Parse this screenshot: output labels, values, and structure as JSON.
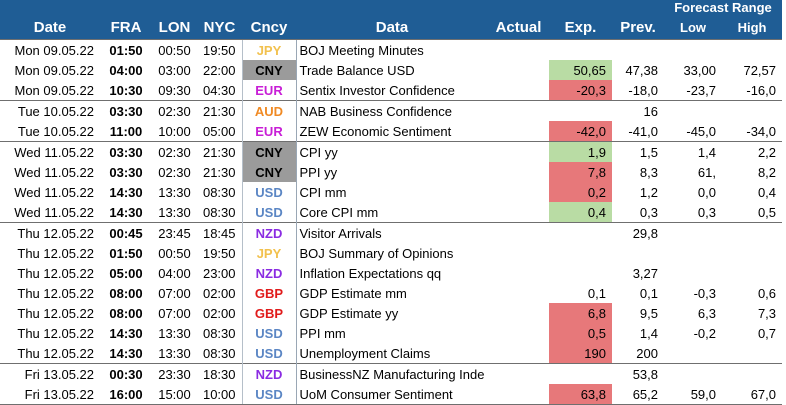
{
  "headers": {
    "date": "Date",
    "fra": "FRA",
    "lon": "LON",
    "nyc": "NYC",
    "cncy": "Cncy",
    "data": "Data",
    "actual": "Actual",
    "exp": "Exp.",
    "prev": "Prev.",
    "forecast_range": "Forecast Range",
    "low": "Low",
    "high": "High"
  },
  "colors": {
    "header_bg": "#1f5d95",
    "JPY": "#f2c14e",
    "CNY": "#000000",
    "EUR": "#c81ed6",
    "AUD": "#f08a24",
    "USD": "#5b86c4",
    "NZD": "#8a2be2",
    "GBP": "#e01b1b",
    "exp_negative_bg": "#e7787a",
    "exp_positive_bg": "#b9dca4",
    "cny_bg": "#9b9b9b"
  },
  "rows": [
    {
      "date": "Mon 09.05.22",
      "fra": "01:50",
      "lon": "00:50",
      "nyc": "19:50",
      "cur": "JPY",
      "data": "BOJ Meeting Minutes",
      "actual": "",
      "exp": "",
      "exp_style": "",
      "prev": "",
      "low": "",
      "high": "",
      "day_start": true
    },
    {
      "date": "Mon 09.05.22",
      "fra": "04:00",
      "lon": "03:00",
      "nyc": "22:00",
      "cur": "CNY",
      "data": "Trade Balance USD",
      "actual": "",
      "exp": "50,65",
      "exp_style": "pos",
      "prev": "47,38",
      "low": "33,00",
      "high": "72,57",
      "day_start": false
    },
    {
      "date": "Mon 09.05.22",
      "fra": "10:30",
      "lon": "09:30",
      "nyc": "04:30",
      "cur": "EUR",
      "data": "Sentix Investor Confidence",
      "actual": "",
      "exp": "-20,3",
      "exp_style": "neg",
      "prev": "-18,0",
      "low": "-23,7",
      "high": "-16,0",
      "day_start": false
    },
    {
      "date": "Tue 10.05.22",
      "fra": "03:30",
      "lon": "02:30",
      "nyc": "21:30",
      "cur": "AUD",
      "data": "NAB Business Confidence",
      "actual": "",
      "exp": "",
      "exp_style": "",
      "prev": "16",
      "low": "",
      "high": "",
      "day_start": true
    },
    {
      "date": "Tue 10.05.22",
      "fra": "11:00",
      "lon": "10:00",
      "nyc": "05:00",
      "cur": "EUR",
      "data": "ZEW Economic Sentiment",
      "actual": "",
      "exp": "-42,0",
      "exp_style": "neg",
      "prev": "-41,0",
      "low": "-45,0",
      "high": "-34,0",
      "day_start": false
    },
    {
      "date": "Wed 11.05.22",
      "fra": "03:30",
      "lon": "02:30",
      "nyc": "21:30",
      "cur": "CNY",
      "data": "CPI yy",
      "actual": "",
      "exp": "1,9",
      "exp_style": "pos",
      "prev": "1,5",
      "low": "1,4",
      "high": "2,2",
      "day_start": true
    },
    {
      "date": "Wed 11.05.22",
      "fra": "03:30",
      "lon": "02:30",
      "nyc": "21:30",
      "cur": "CNY",
      "data": "PPI yy",
      "actual": "",
      "exp": "7,8",
      "exp_style": "neg",
      "prev": "8,3",
      "low": "61,",
      "high": "8,2",
      "day_start": false
    },
    {
      "date": "Wed 11.05.22",
      "fra": "14:30",
      "lon": "13:30",
      "nyc": "08:30",
      "cur": "USD",
      "data": "CPI mm",
      "actual": "",
      "exp": "0,2",
      "exp_style": "neg",
      "prev": "1,2",
      "low": "0,0",
      "high": "0,4",
      "day_start": false
    },
    {
      "date": "Wed 11.05.22",
      "fra": "14:30",
      "lon": "13:30",
      "nyc": "08:30",
      "cur": "USD",
      "data": "Core CPI mm",
      "actual": "",
      "exp": "0,4",
      "exp_style": "pos",
      "prev": "0,3",
      "low": "0,3",
      "high": "0,5",
      "day_start": false
    },
    {
      "date": "Thu 12.05.22",
      "fra": "00:45",
      "lon": "23:45",
      "nyc": "18:45",
      "cur": "NZD",
      "data": "Visitor Arrivals",
      "actual": "",
      "exp": "",
      "exp_style": "",
      "prev": "29,8",
      "low": "",
      "high": "",
      "day_start": true
    },
    {
      "date": "Thu 12.05.22",
      "fra": "01:50",
      "lon": "00:50",
      "nyc": "19:50",
      "cur": "JPY",
      "data": "BOJ Summary of Opinions",
      "actual": "",
      "exp": "",
      "exp_style": "",
      "prev": "",
      "low": "",
      "high": "",
      "day_start": false
    },
    {
      "date": "Thu 12.05.22",
      "fra": "05:00",
      "lon": "04:00",
      "nyc": "23:00",
      "cur": "NZD",
      "data": "Inflation Expectations qq",
      "actual": "",
      "exp": "",
      "exp_style": "",
      "prev": "3,27",
      "low": "",
      "high": "",
      "day_start": false
    },
    {
      "date": "Thu 12.05.22",
      "fra": "08:00",
      "lon": "07:00",
      "nyc": "02:00",
      "cur": "GBP",
      "data": "GDP Estimate mm",
      "actual": "",
      "exp": "0,1",
      "exp_style": "",
      "prev": "0,1",
      "low": "-0,3",
      "high": "0,6",
      "day_start": false
    },
    {
      "date": "Thu 12.05.22",
      "fra": "08:00",
      "lon": "07:00",
      "nyc": "02:00",
      "cur": "GBP",
      "data": "GDP Estimate yy",
      "actual": "",
      "exp": "6,8",
      "exp_style": "neg",
      "prev": "9,5",
      "low": "6,3",
      "high": "7,3",
      "day_start": false
    },
    {
      "date": "Thu 12.05.22",
      "fra": "14:30",
      "lon": "13:30",
      "nyc": "08:30",
      "cur": "USD",
      "data": "PPI mm",
      "actual": "",
      "exp": "0,5",
      "exp_style": "neg",
      "prev": "1,4",
      "low": "-0,2",
      "high": "0,7",
      "day_start": false
    },
    {
      "date": "Thu 12.05.22",
      "fra": "14:30",
      "lon": "13:30",
      "nyc": "08:30",
      "cur": "USD",
      "data": "Unemployment Claims",
      "actual": "",
      "exp": "190",
      "exp_style": "neg",
      "prev": "200",
      "low": "",
      "high": "",
      "day_start": false
    },
    {
      "date": "Fri 13.05.22",
      "fra": "00:30",
      "lon": "23:30",
      "nyc": "18:30",
      "cur": "NZD",
      "data": "BusinessNZ Manufacturing Inde",
      "actual": "",
      "exp": "",
      "exp_style": "",
      "prev": "53,8",
      "low": "",
      "high": "",
      "day_start": true
    },
    {
      "date": "Fri 13.05.22",
      "fra": "16:00",
      "lon": "15:00",
      "nyc": "10:00",
      "cur": "USD",
      "data": "UoM Consumer Sentiment",
      "actual": "",
      "exp": "63,8",
      "exp_style": "neg",
      "prev": "65,2",
      "low": "59,0",
      "high": "67,0",
      "day_start": false
    }
  ]
}
